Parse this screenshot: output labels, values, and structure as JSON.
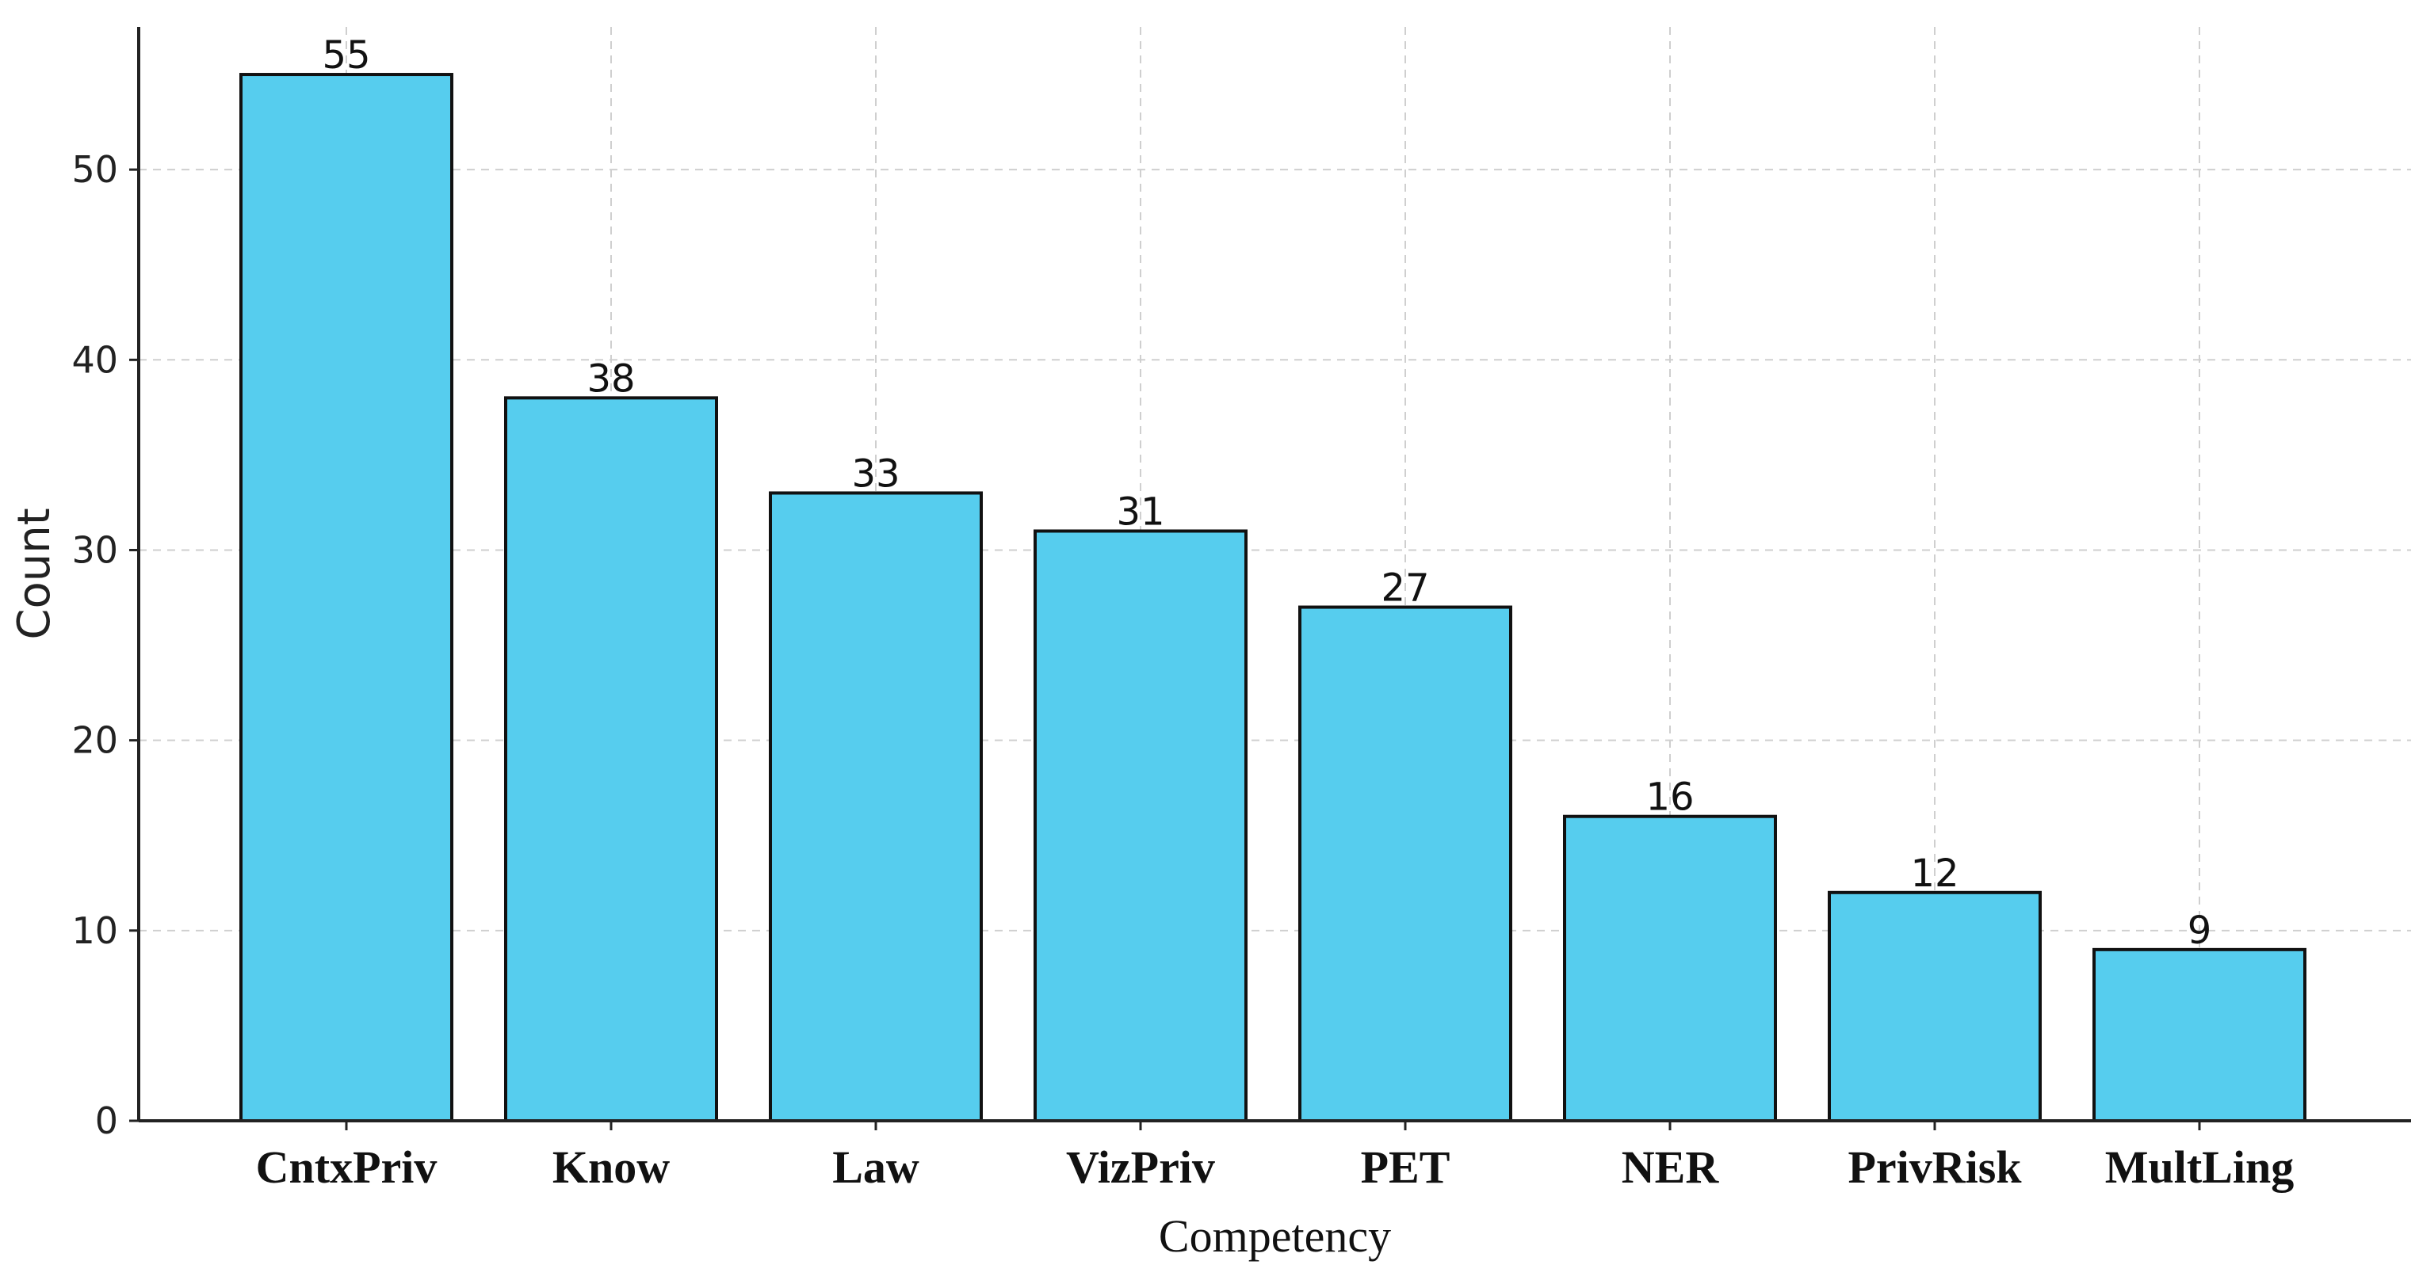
{
  "chart_data": {
    "type": "bar",
    "categories": [
      "CntxPriv",
      "Know",
      "Law",
      "VizPriv",
      "PET",
      "NER",
      "PrivRisk",
      "MultLing"
    ],
    "values": [
      55,
      38,
      33,
      31,
      27,
      16,
      12,
      9
    ],
    "data_labels": [
      "55",
      "38",
      "33",
      "31",
      "27",
      "16",
      "12",
      "9"
    ],
    "title": "",
    "xlabel": "Competency",
    "ylabel": "Count",
    "ylim": [
      0,
      57.5
    ],
    "yticks": [
      0,
      10,
      20,
      30,
      40,
      50
    ],
    "ytick_labels": [
      "0",
      "10",
      "20",
      "30",
      "40",
      "50"
    ],
    "grid": true,
    "bar_color": "#56CDEE",
    "bar_edge_color": "#111111"
  }
}
